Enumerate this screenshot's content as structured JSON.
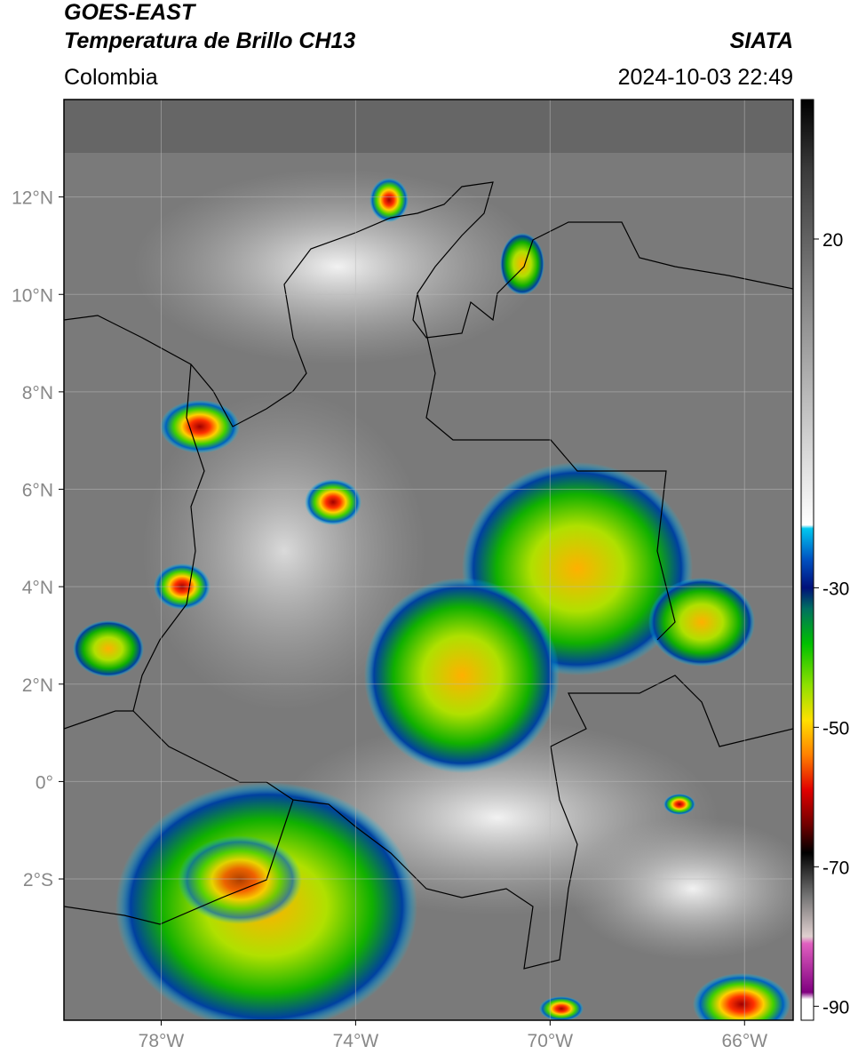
{
  "chart_data": {
    "type": "map",
    "title": "GOES-EAST",
    "subtitle": "Temperatura de Brillo CH13",
    "source": "SIATA",
    "region": "Colombia",
    "datetime": "2024-10-03 22:49",
    "xlim": [
      -80,
      -65
    ],
    "ylim": [
      -4.9,
      14
    ],
    "xticks": [
      {
        "value": -78,
        "label": "78°W"
      },
      {
        "value": -74,
        "label": "74°W"
      },
      {
        "value": -70,
        "label": "70°W"
      },
      {
        "value": -66,
        "label": "66°W"
      }
    ],
    "yticks": [
      {
        "value": 12,
        "label": "12°N"
      },
      {
        "value": 10,
        "label": "10°N"
      },
      {
        "value": 8,
        "label": "8°N"
      },
      {
        "value": 6,
        "label": "6°N"
      },
      {
        "value": 4,
        "label": "4°N"
      },
      {
        "value": 2,
        "label": "2°N"
      },
      {
        "value": 0,
        "label": "0°"
      },
      {
        "value": -2,
        "label": "2°S"
      }
    ],
    "grid": true,
    "colorbar": {
      "lim": [
        -92,
        40
      ],
      "ticks": [
        20,
        -30,
        -50,
        -70,
        -90
      ],
      "colormap": [
        {
          "value": 40,
          "color": "#000000"
        },
        {
          "value": 30,
          "color": "#3a3a3a"
        },
        {
          "value": 10,
          "color": "#8a8a8a"
        },
        {
          "value": -21,
          "color": "#ffffff"
        },
        {
          "value": -21.5,
          "color": "#00c8f0"
        },
        {
          "value": -26,
          "color": "#0050c0"
        },
        {
          "value": -30,
          "color": "#00107a"
        },
        {
          "value": -33,
          "color": "#007060"
        },
        {
          "value": -38,
          "color": "#00c000"
        },
        {
          "value": -44,
          "color": "#90e000"
        },
        {
          "value": -49,
          "color": "#ffe000"
        },
        {
          "value": -54,
          "color": "#ff8000"
        },
        {
          "value": -59,
          "color": "#e00000"
        },
        {
          "value": -64,
          "color": "#700000"
        },
        {
          "value": -68,
          "color": "#000000"
        },
        {
          "value": -74,
          "color": "#707070"
        },
        {
          "value": -80,
          "color": "#e0d0d0"
        },
        {
          "value": -81,
          "color": "#e060c0"
        },
        {
          "value": -88,
          "color": "#800080"
        },
        {
          "value": -89,
          "color": "#ffffff"
        },
        {
          "value": -92,
          "color": "#ffffff"
        }
      ]
    }
  }
}
